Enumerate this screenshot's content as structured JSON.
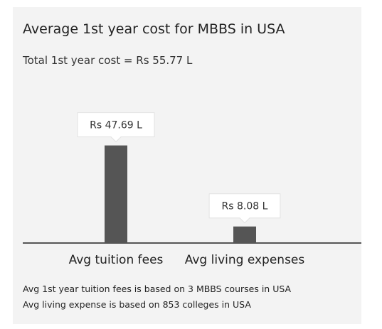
{
  "title": "Average 1st year cost for MBBS in USA",
  "subtitle": "Total 1st year cost = Rs 55.77 L",
  "chart_data": {
    "type": "bar",
    "categories": [
      "Avg tuition fees",
      "Avg living expenses"
    ],
    "values": [
      47.69,
      8.08
    ],
    "data_labels": [
      "Rs 47.69 L",
      "Rs 8.08 L"
    ],
    "unit": "Rs L",
    "ylim": [
      0,
      50
    ],
    "grid": false,
    "legend": "none",
    "bar_color": "#555555"
  },
  "notes": [
    "Avg 1st year tuition fees is based on 3 MBBS courses in USA",
    "Avg living expense is based on 853 colleges in USA"
  ]
}
